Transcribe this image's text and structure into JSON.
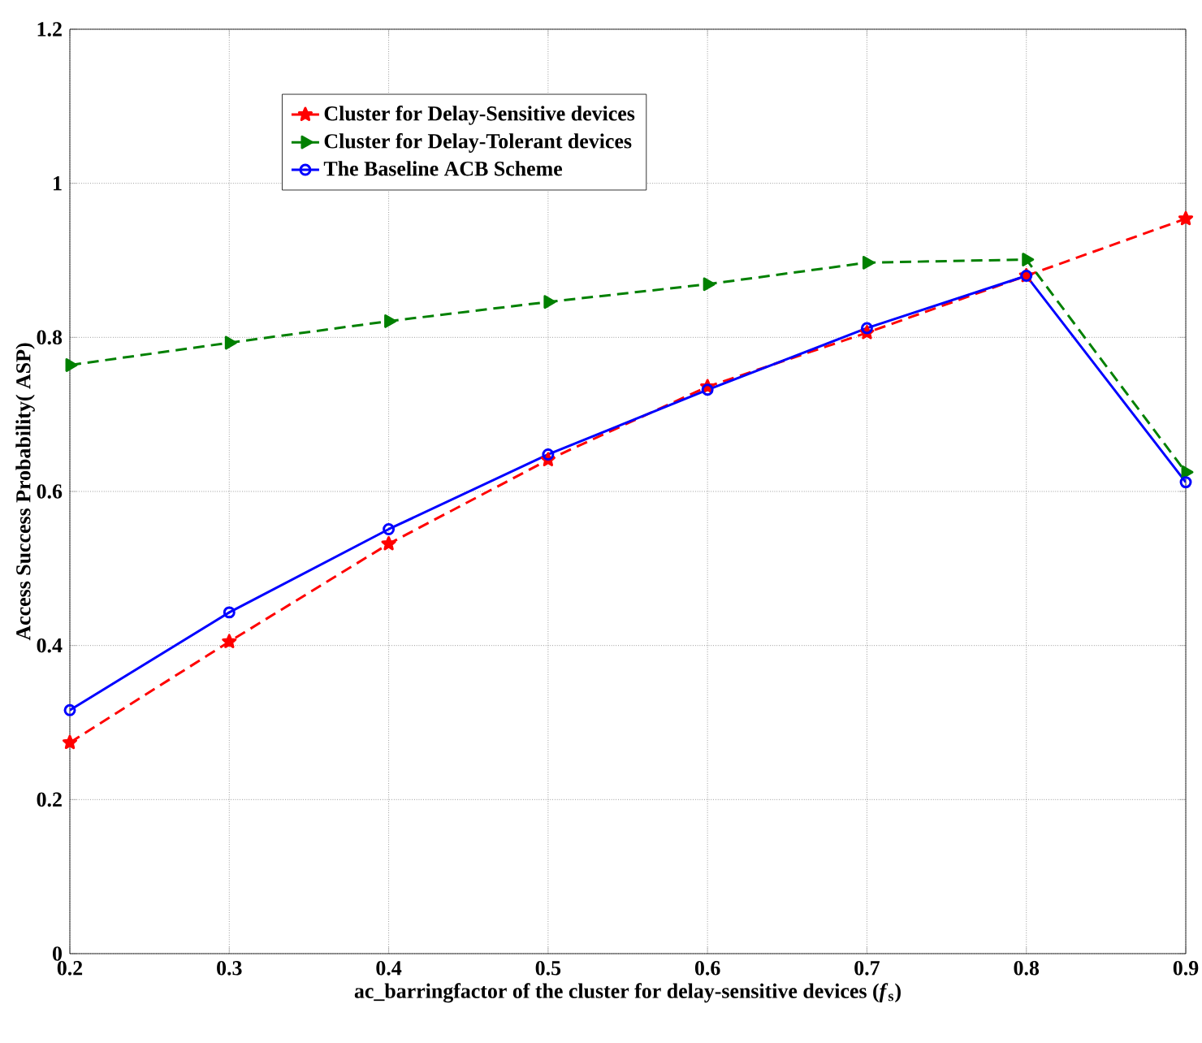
{
  "chart_data": {
    "type": "line",
    "xlabel": "ac_barringfactor of the cluster for delay-sensitive devices  (*f*$_{s}$)",
    "ylabel": "Access Success Probability( ASP)",
    "x": [
      0.2,
      0.3,
      0.4,
      0.5,
      0.6,
      0.7,
      0.8,
      0.9
    ],
    "series": [
      {
        "name": "Cluster for Delay-Sensitive devices",
        "color": "#ff0000",
        "marker": "star",
        "line_style": "dashed",
        "values": [
          0.274,
          0.405,
          0.532,
          0.641,
          0.736,
          0.806,
          0.88,
          0.954
        ]
      },
      {
        "name": "Cluster for Delay-Tolerant devices",
        "color": "#008000",
        "marker": "triangle",
        "line_style": "dashed",
        "values": [
          0.764,
          0.793,
          0.821,
          0.846,
          0.869,
          0.897,
          0.901,
          0.625
        ]
      },
      {
        "name": "The Baseline ACB Scheme",
        "color": "#0000ff",
        "marker": "circle",
        "line_style": "solid",
        "values": [
          0.316,
          0.443,
          0.551,
          0.648,
          0.732,
          0.812,
          0.88,
          0.612
        ]
      }
    ],
    "xlim": [
      0.2,
      0.9
    ],
    "xticks": [
      0.2,
      0.3,
      0.4,
      0.5,
      0.6,
      0.7,
      0.8,
      0.9
    ],
    "ylim": [
      0,
      1.2
    ],
    "yticks": [
      0,
      0.2,
      0.4,
      0.6,
      0.8,
      1,
      1.2
    ],
    "grid": true,
    "legend": "top left"
  }
}
